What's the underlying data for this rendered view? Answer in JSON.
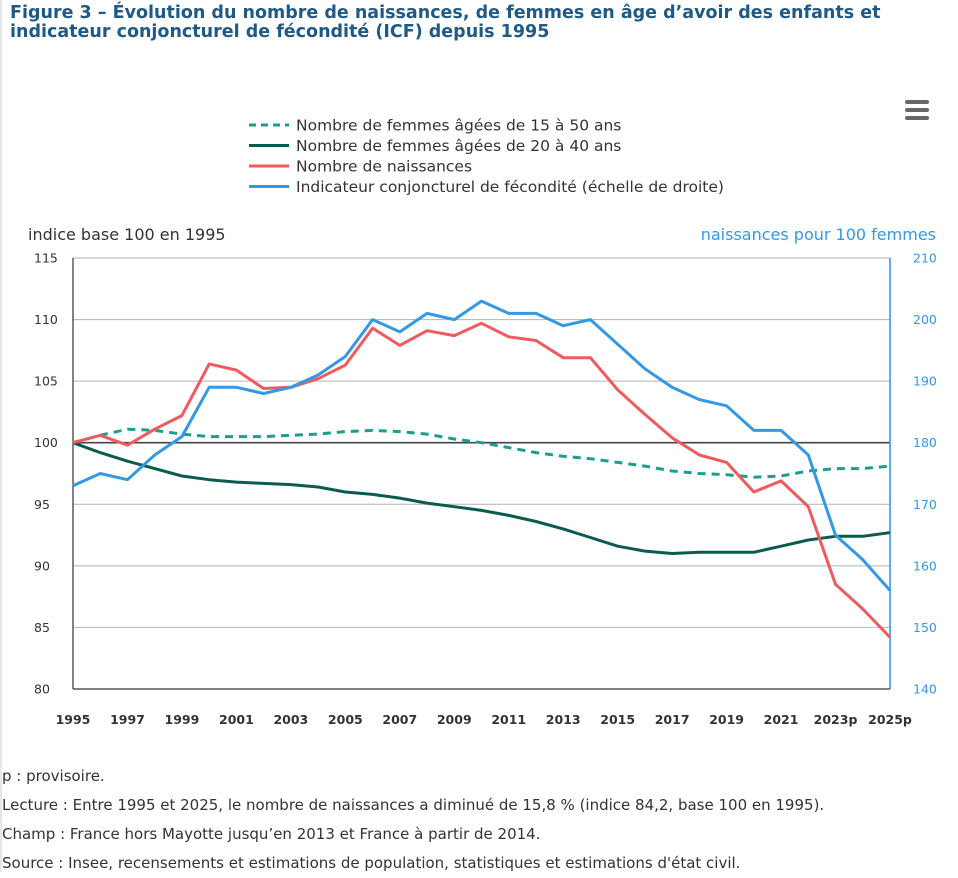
{
  "figure": {
    "title_line1": "Figure 3 – Évolution du nombre de naissances, de femmes en âge d’avoir des enfants et",
    "title_line2": "indicateur conjoncturel de fécondité (ICF) depuis 1995"
  },
  "menu": {
    "icon": "hamburger-menu-icon"
  },
  "chart_data": {
    "type": "line",
    "y_left_label": "indice base 100 en 1995",
    "y_right_label": "naissances pour 100 femmes",
    "ylim_left": [
      80,
      115
    ],
    "ylim_right": [
      140,
      210
    ],
    "left_ticks": [
      "115",
      "110",
      "105",
      "100",
      "95",
      "90",
      "85",
      "80"
    ],
    "right_ticks": [
      "210",
      "200",
      "190",
      "180",
      "170",
      "160",
      "150",
      "140"
    ],
    "x_tick_labels": [
      "1995",
      "1997",
      "1999",
      "2001",
      "2003",
      "2005",
      "2007",
      "2009",
      "2011",
      "2013",
      "2015",
      "2017",
      "2019",
      "2021",
      "2023p",
      "2025p"
    ],
    "x": [
      1995,
      1996,
      1997,
      1998,
      1999,
      2000,
      2001,
      2002,
      2003,
      2004,
      2005,
      2006,
      2007,
      2008,
      2009,
      2010,
      2011,
      2012,
      2013,
      2014,
      2015,
      2016,
      2017,
      2018,
      2019,
      2020,
      2021,
      2022,
      2023,
      2024,
      2025
    ],
    "grid": true,
    "reference_line_y": 100,
    "legend_position": "top",
    "series": [
      {
        "name": "Nombre de femmes âgées de 15 à 50 ans",
        "axis": "left",
        "color": "#1a9e8f",
        "dash": "dashed",
        "values": [
          100,
          100.6,
          101.1,
          101.0,
          100.7,
          100.5,
          100.5,
          100.5,
          100.6,
          100.7,
          100.9,
          101.0,
          100.9,
          100.7,
          100.3,
          100.0,
          99.6,
          99.2,
          98.9,
          98.7,
          98.4,
          98.1,
          97.7,
          97.5,
          97.4,
          97.2,
          97.3,
          97.7,
          97.9,
          97.9,
          98.1
        ]
      },
      {
        "name": "Nombre de femmes âgées de 20 à 40 ans",
        "axis": "left",
        "color": "#0b5c4e",
        "dash": "solid",
        "values": [
          100,
          99.2,
          98.5,
          97.9,
          97.3,
          97.0,
          96.8,
          96.7,
          96.6,
          96.4,
          96.0,
          95.8,
          95.5,
          95.1,
          94.8,
          94.5,
          94.1,
          93.6,
          93.0,
          92.3,
          91.6,
          91.2,
          91.0,
          91.1,
          91.1,
          91.1,
          91.6,
          92.1,
          92.4,
          92.4,
          92.7
        ]
      },
      {
        "name": "Nombre de naissances",
        "axis": "left",
        "color": "#f05a5f",
        "dash": "solid",
        "values": [
          100,
          100.6,
          99.8,
          101.1,
          102.2,
          106.4,
          105.9,
          104.4,
          104.5,
          105.2,
          106.3,
          109.3,
          107.9,
          109.1,
          108.7,
          109.7,
          108.6,
          108.3,
          106.9,
          106.9,
          104.3,
          102.3,
          100.4,
          99.0,
          98.4,
          96.0,
          96.9,
          94.8,
          88.5,
          86.5,
          84.2
        ]
      },
      {
        "name": "Indicateur conjoncturel de fécondité (échelle de droite)",
        "axis": "right",
        "color": "#3399e6",
        "dash": "solid",
        "values": [
          173,
          175,
          174,
          178,
          181,
          189,
          189,
          188,
          189,
          191,
          194,
          200,
          198,
          201,
          200,
          203,
          201,
          201,
          199,
          200,
          196,
          192,
          189,
          187,
          186,
          182,
          182,
          178,
          165,
          161,
          156
        ]
      }
    ]
  },
  "notes": {
    "provisional": "p : provisoire.",
    "reading": "Lecture : Entre 1995 et 2025, le nombre de naissances a diminué de 15,8 % (indice 84,2, base 100 en 1995).",
    "scope": "Champ : France hors Mayotte jusqu’en 2013 et France à partir de 2014.",
    "source": "Source : Insee, recensements et estimations de population, statistiques et estimations d'état civil."
  }
}
